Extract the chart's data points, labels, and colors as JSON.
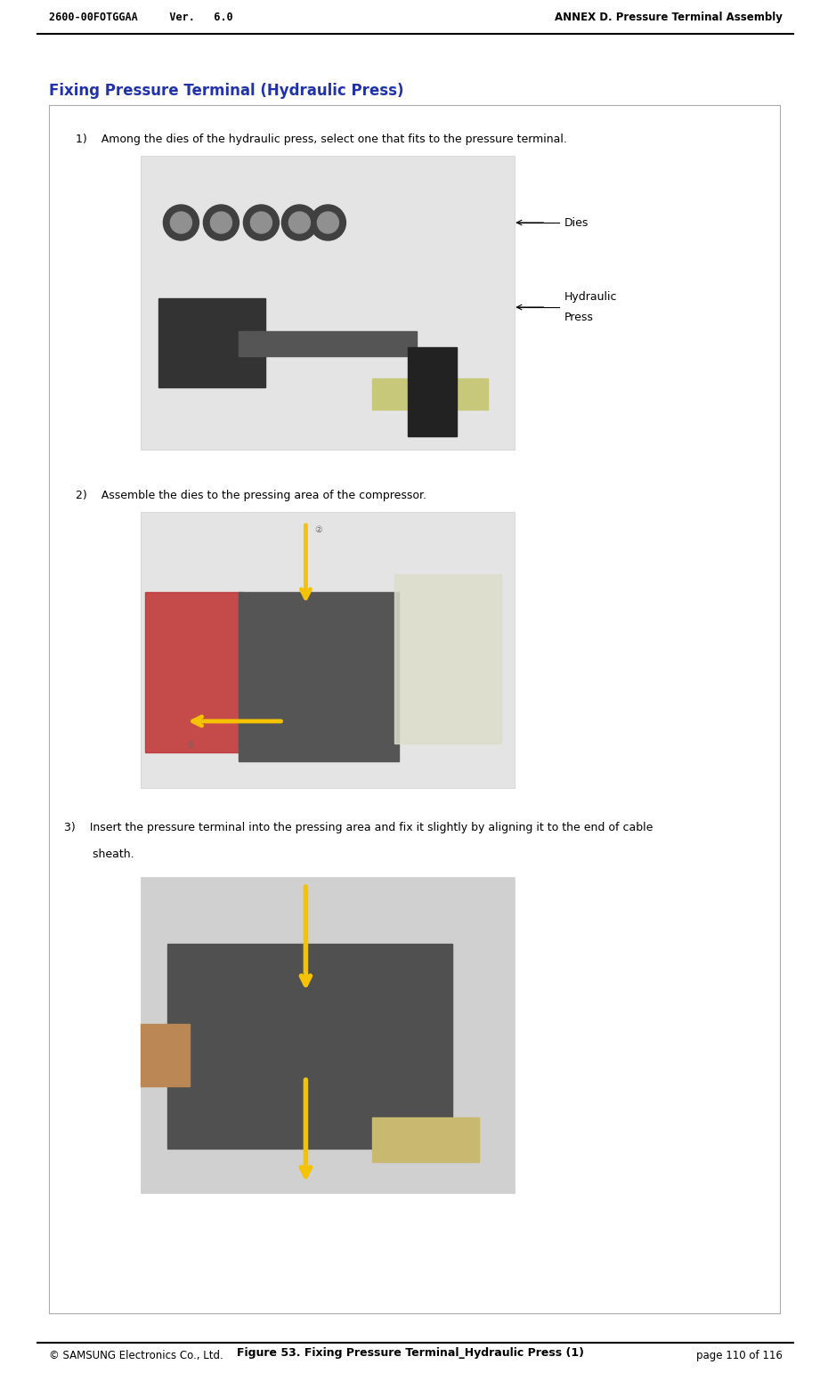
{
  "page_width": 9.21,
  "page_height": 15.6,
  "bg_color": "#ffffff",
  "header_left": "2600-00FOTGGAA     Ver.   6.0",
  "header_right": "ANNEX D. Pressure Terminal Assembly",
  "footer_left": "© SAMSUNG Electronics Co., Ltd.",
  "footer_right": "page 110 of 116",
  "section_title": "Fixing Pressure Terminal (Hydraulic Press)",
  "section_title_color": "#2233aa",
  "figure_caption": "Figure 53. Fixing Pressure Terminal_Hydraulic Press (1)",
  "step1_text": "1)    Among the dies of the hydraulic press, select one that fits to the pressure terminal.",
  "step2_text": "2)    Assemble the dies to the pressing area of the compressor.",
  "step3_text_line1": "3)    Insert the pressure terminal into the pressing area and fix it slightly by aligning it to the end of cable",
  "step3_text_line2": "        sheath.",
  "label_dies": "Dies",
  "label_hydraulic_line1": "Hydraulic",
  "label_hydraulic_line2": "Press",
  "box_border_color": "#aaaaaa",
  "body_font_size": 9,
  "header_font_size": 8.5,
  "title_font_size": 12,
  "caption_font_size": 9
}
